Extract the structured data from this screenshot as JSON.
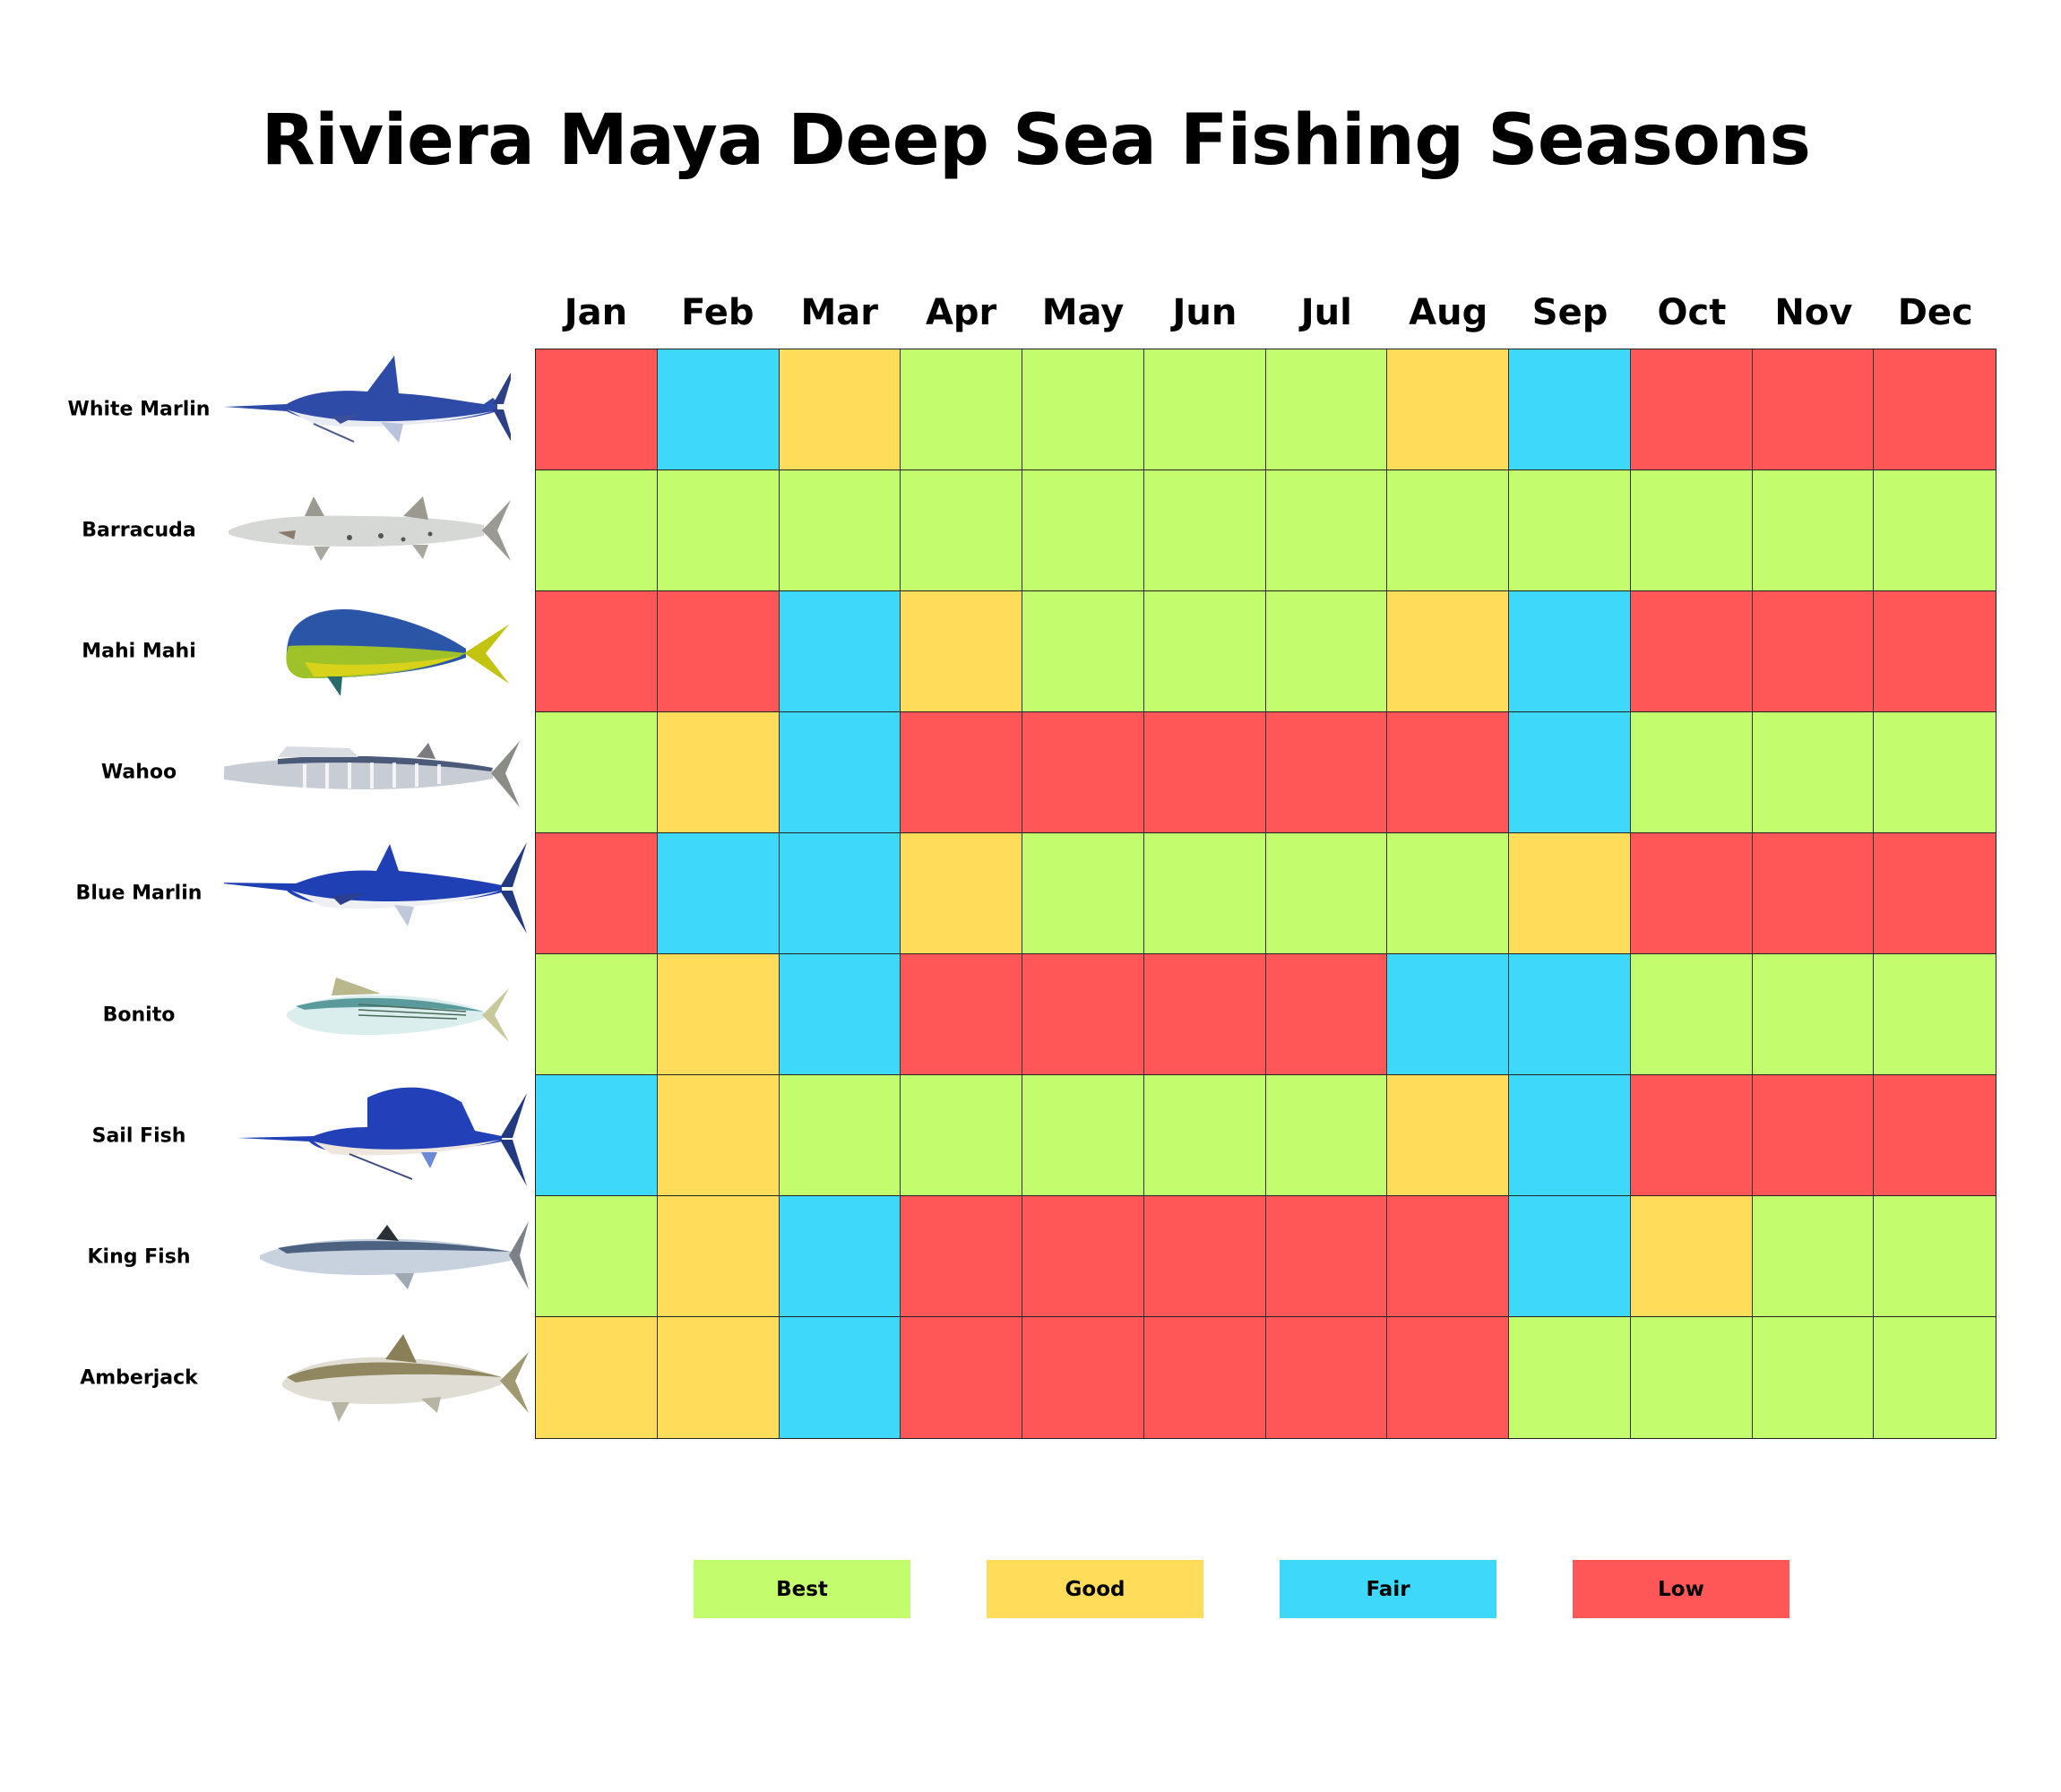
{
  "chart_data": {
    "type": "heatmap",
    "title": "Riviera Maya Deep Sea Fishing Seasons",
    "columns": [
      "Jan",
      "Feb",
      "Mar",
      "Apr",
      "May",
      "Jun",
      "Jul",
      "Aug",
      "Sep",
      "Oct",
      "Nov",
      "Dec"
    ],
    "rows": [
      "White Marlin",
      "Barracuda",
      "Mahi Mahi",
      "Wahoo",
      "Blue Marlin",
      "Bonito",
      "Sail Fish",
      "King Fish",
      "Amberjack"
    ],
    "values": [
      [
        "Low",
        "Fair",
        "Good",
        "Best",
        "Best",
        "Best",
        "Best",
        "Good",
        "Fair",
        "Low",
        "Low",
        "Low"
      ],
      [
        "Best",
        "Best",
        "Best",
        "Best",
        "Best",
        "Best",
        "Best",
        "Best",
        "Best",
        "Best",
        "Best",
        "Best"
      ],
      [
        "Low",
        "Low",
        "Fair",
        "Good",
        "Best",
        "Best",
        "Best",
        "Good",
        "Fair",
        "Low",
        "Low",
        "Low"
      ],
      [
        "Best",
        "Good",
        "Fair",
        "Low",
        "Low",
        "Low",
        "Low",
        "Low",
        "Fair",
        "Best",
        "Best",
        "Best"
      ],
      [
        "Low",
        "Fair",
        "Fair",
        "Good",
        "Best",
        "Best",
        "Best",
        "Best",
        "Good",
        "Low",
        "Low",
        "Low"
      ],
      [
        "Best",
        "Good",
        "Fair",
        "Low",
        "Low",
        "Low",
        "Low",
        "Fair",
        "Fair",
        "Best",
        "Best",
        "Best"
      ],
      [
        "Fair",
        "Good",
        "Best",
        "Best",
        "Best",
        "Best",
        "Best",
        "Good",
        "Fair",
        "Low",
        "Low",
        "Low"
      ],
      [
        "Best",
        "Good",
        "Fair",
        "Low",
        "Low",
        "Low",
        "Low",
        "Low",
        "Fair",
        "Good",
        "Best",
        "Best"
      ],
      [
        "Good",
        "Good",
        "Fair",
        "Low",
        "Low",
        "Low",
        "Low",
        "Low",
        "Best",
        "Best",
        "Best",
        "Best"
      ]
    ],
    "legend": [
      {
        "label": "Best",
        "color": "#c3fd6d"
      },
      {
        "label": "Good",
        "color": "#ffdc5a"
      },
      {
        "label": "Fair",
        "color": "#3ed8fa"
      },
      {
        "label": "Low",
        "color": "#ff5757"
      }
    ],
    "legend_position": "bottom"
  },
  "title": "Riviera Maya Deep Sea Fishing Seasons",
  "months": [
    "Jan",
    "Feb",
    "Mar",
    "Apr",
    "May",
    "Jun",
    "Jul",
    "Aug",
    "Sep",
    "Oct",
    "Nov",
    "Dec"
  ],
  "fish": [
    {
      "name": "White Marlin",
      "icon": "white-marlin-icon"
    },
    {
      "name": "Barracuda",
      "icon": "barracuda-icon"
    },
    {
      "name": "Mahi Mahi",
      "icon": "mahi-mahi-icon"
    },
    {
      "name": "Wahoo",
      "icon": "wahoo-icon"
    },
    {
      "name": "Blue Marlin",
      "icon": "blue-marlin-icon"
    },
    {
      "name": "Bonito",
      "icon": "bonito-icon"
    },
    {
      "name": "Sail Fish",
      "icon": "sail-fish-icon"
    },
    {
      "name": "King Fish",
      "icon": "king-fish-icon"
    },
    {
      "name": "Amberjack",
      "icon": "amberjack-icon"
    }
  ],
  "legend": {
    "best": "Best",
    "good": "Good",
    "fair": "Fair",
    "low": "Low"
  },
  "colors": {
    "Best": "#c3fd6d",
    "Good": "#ffdc5a",
    "Fair": "#3ed8fa",
    "Low": "#ff5757"
  }
}
